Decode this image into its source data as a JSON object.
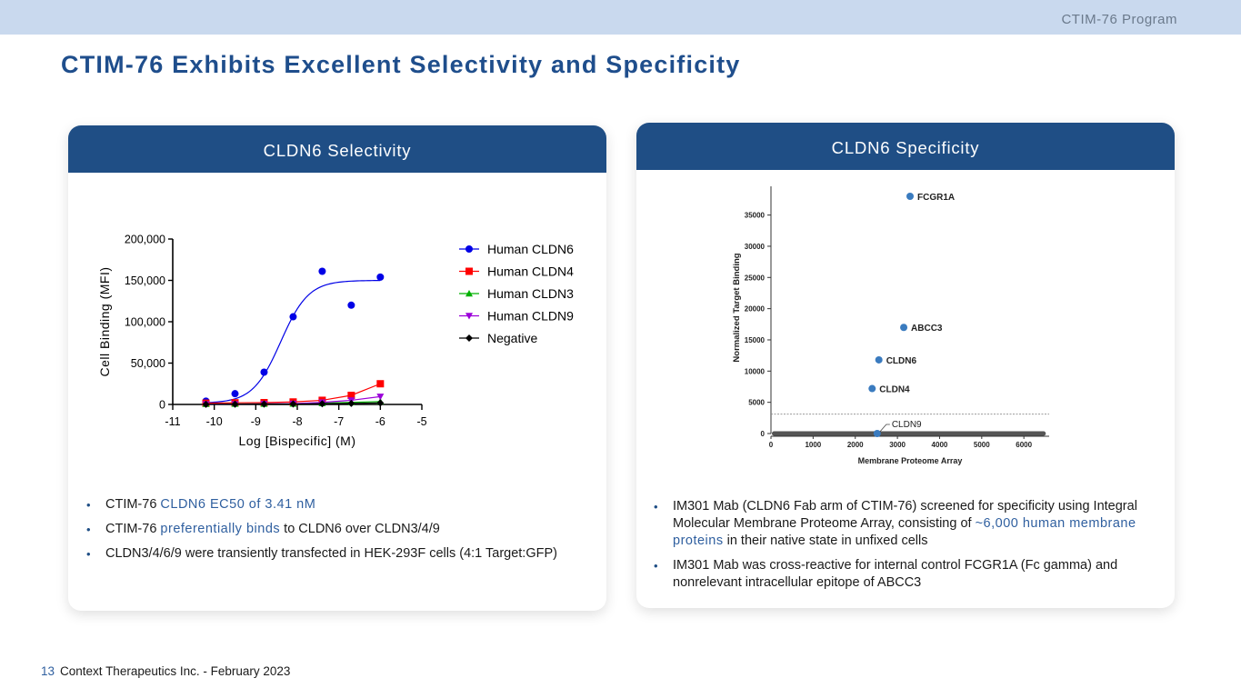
{
  "header": {
    "program": "CTIM-76 Program"
  },
  "title": "CTIM-76 Exhibits Excellent Selectivity and Specificity",
  "left_panel": {
    "header": "CLDN6 Selectivity",
    "bullets": [
      {
        "pre": "CTIM-76 ",
        "hl": "CLDN6 EC50 of 3.41 nM",
        "post": ""
      },
      {
        "pre": "CTIM-76 ",
        "hl": "preferentially binds",
        "post": " to CLDN6 over CLDN3/4/9"
      },
      {
        "pre": "CLDN3/4/6/9 were transiently transfected in HEK-293F cells (4:1 Target:GFP)",
        "hl": "",
        "post": ""
      }
    ]
  },
  "right_panel": {
    "header": "CLDN6 Specificity",
    "bullets": [
      {
        "pre": "IM301 Mab (CLDN6 Fab arm of CTIM-76) screened for specificity using Integral Molecular Membrane Proteome Array, consisting of ",
        "hl": "~6,000 human membrane proteins",
        "post": " in their native state in unfixed cells"
      },
      {
        "pre": "IM301 Mab was cross-reactive for internal control FCGR1A (Fc gamma) and nonrelevant intracellular epitope of ABCC3",
        "hl": "",
        "post": ""
      }
    ]
  },
  "footer": {
    "page": "13",
    "text": "Context Therapeutics Inc. - February 2023"
  },
  "chart_data": [
    {
      "type": "line",
      "title": "",
      "xlabel": "Log [Bispecific] (M)",
      "ylabel": "Cell Binding (MFI)",
      "xlim": [
        -11,
        -5
      ],
      "ylim": [
        0,
        200000
      ],
      "x_ticks": [
        "-11",
        "-10",
        "-9",
        "-8",
        "-7",
        "-6",
        "-5"
      ],
      "y_ticks": [
        "0",
        "50,000",
        "100,000",
        "150,000",
        "200,000"
      ],
      "legend_position": "right",
      "series": [
        {
          "name": "Human CLDN6",
          "color": "#0000e6",
          "marker": "circle",
          "fit": "sigmoid",
          "x": [
            -10.2,
            -9.5,
            -8.8,
            -8.1,
            -7.4,
            -6.7,
            -6.0
          ],
          "y": [
            4000,
            13000,
            39000,
            106000,
            161000,
            120000,
            154000
          ]
        },
        {
          "name": "Human CLDN4",
          "color": "#ff0000",
          "marker": "square",
          "x": [
            -10.2,
            -9.5,
            -8.8,
            -8.1,
            -7.4,
            -6.7,
            -6.0
          ],
          "y": [
            1500,
            2000,
            2200,
            3000,
            5000,
            11000,
            25000
          ]
        },
        {
          "name": "Human CLDN3",
          "color": "#00b000",
          "marker": "triangle-up",
          "x": [
            -10.2,
            -9.5,
            -8.8,
            -8.1,
            -7.4,
            -6.7,
            -6.0
          ],
          "y": [
            500,
            600,
            700,
            800,
            1500,
            2500,
            3500
          ]
        },
        {
          "name": "Human CLDN9",
          "color": "#9b00d9",
          "marker": "triangle-down",
          "x": [
            -10.2,
            -9.5,
            -8.8,
            -8.1,
            -7.4,
            -6.7,
            -6.0
          ],
          "y": [
            400,
            500,
            700,
            1000,
            2500,
            5000,
            9500
          ]
        },
        {
          "name": "Negative",
          "color": "#000000",
          "marker": "diamond",
          "x": [
            -10.2,
            -9.5,
            -8.8,
            -8.1,
            -7.4,
            -6.7,
            -6.0
          ],
          "y": [
            200,
            300,
            400,
            500,
            800,
            1200,
            1800
          ]
        }
      ]
    },
    {
      "type": "scatter",
      "title": "",
      "xlabel": "Membrane Proteome Array",
      "ylabel": "Normalized Target Binding",
      "xlim": [
        0,
        6600
      ],
      "ylim": [
        0,
        38000
      ],
      "x_ticks": [
        "0",
        "1000",
        "2000",
        "3000",
        "4000",
        "5000",
        "6000"
      ],
      "y_ticks": [
        "0",
        "5000",
        "10000",
        "15000",
        "20000",
        "25000",
        "30000",
        "35000"
      ],
      "threshold": 3100,
      "point_color": "#3a7bbf",
      "background_color": "#555555",
      "labeled_points": [
        {
          "label": "FCGR1A",
          "x": 3300,
          "y": 38000
        },
        {
          "label": "ABCC3",
          "x": 3150,
          "y": 17000
        },
        {
          "label": "CLDN6",
          "x": 2560,
          "y": 11800
        },
        {
          "label": "CLDN4",
          "x": 2400,
          "y": 7200
        },
        {
          "label": "CLDN9",
          "x": 2520,
          "y": 0
        }
      ]
    }
  ]
}
